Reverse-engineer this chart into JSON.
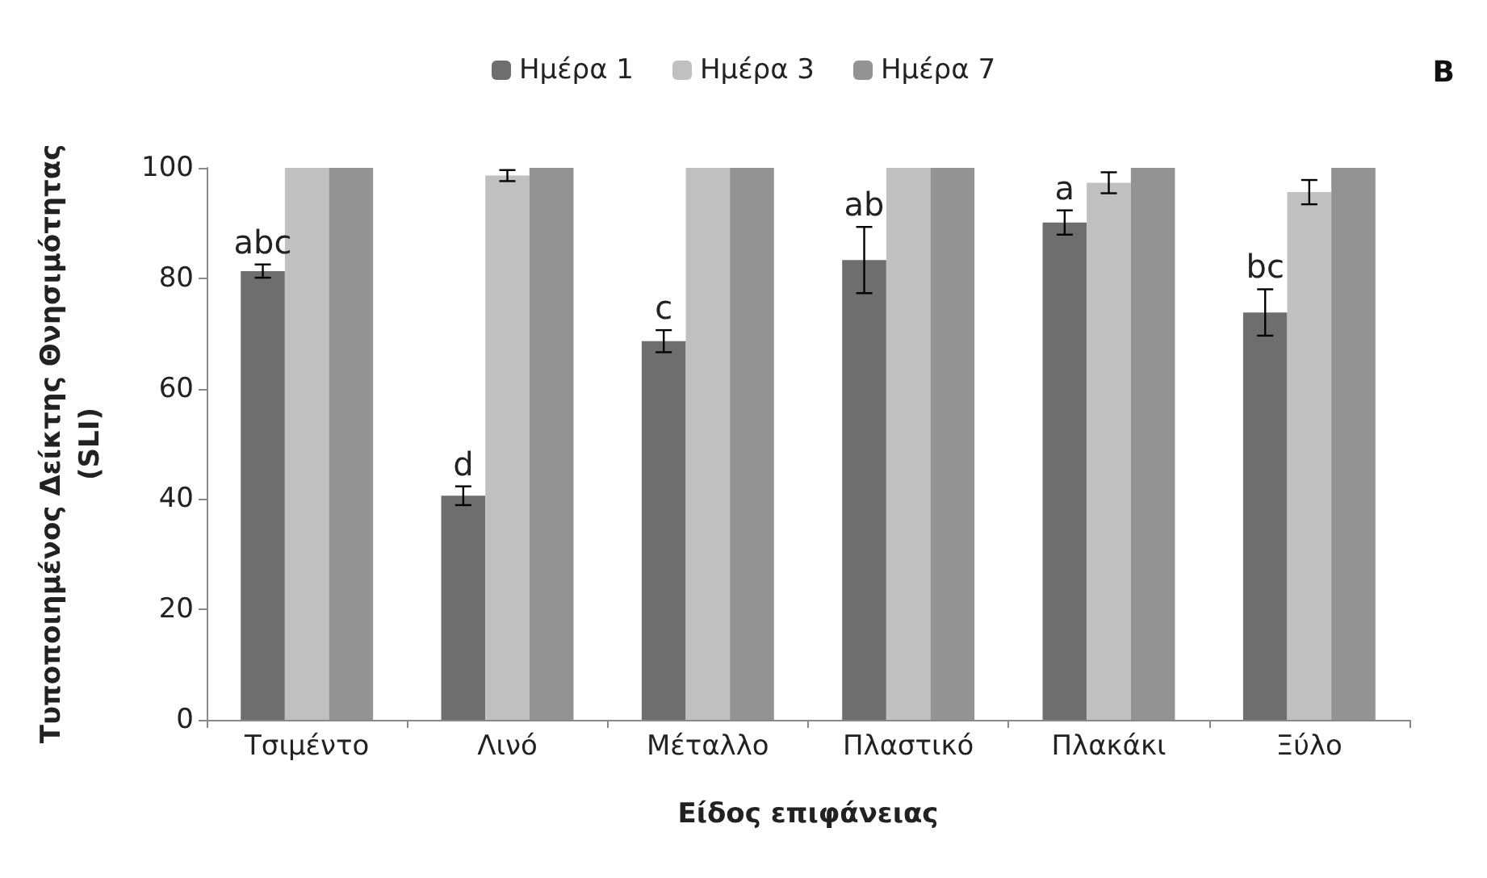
{
  "chart_data": {
    "type": "bar",
    "xlabel": "Είδος επιφάνειας",
    "ylabel": "Τυποποιημένος Δείκτης Θνησιμότητας\n(SLI)",
    "categories": [
      "Τσιμέντο",
      "Λινό",
      "Μέταλλο",
      "Πλαστικό",
      "Πλακάκι",
      "Ξύλο"
    ],
    "series": [
      {
        "name": "Ημέρα 1",
        "color": "#6e6e6e",
        "values": [
          81.3,
          40.6,
          68.6,
          83.3,
          90.1,
          73.8
        ],
        "errors": [
          1.2,
          1.7,
          2,
          6,
          2.2,
          4.2
        ],
        "value_labels": [
          "abc",
          "d",
          "c",
          "ab",
          "a",
          "bc"
        ]
      },
      {
        "name": "Ημέρα 3",
        "color": "#c0c0c0",
        "values": [
          100,
          98.6,
          100,
          100,
          97.3,
          95.6
        ],
        "errors": [
          null,
          1,
          null,
          null,
          1.9,
          2.2
        ]
      },
      {
        "name": "Ημέρα 7",
        "color": "#939393",
        "values": [
          100,
          100,
          100,
          100,
          100,
          100
        ]
      }
    ],
    "ylim": [
      0,
      100
    ],
    "yticks": [
      0,
      20,
      40,
      60,
      80,
      100
    ],
    "grid": false,
    "legend": "top",
    "annotations": [
      "B"
    ]
  }
}
